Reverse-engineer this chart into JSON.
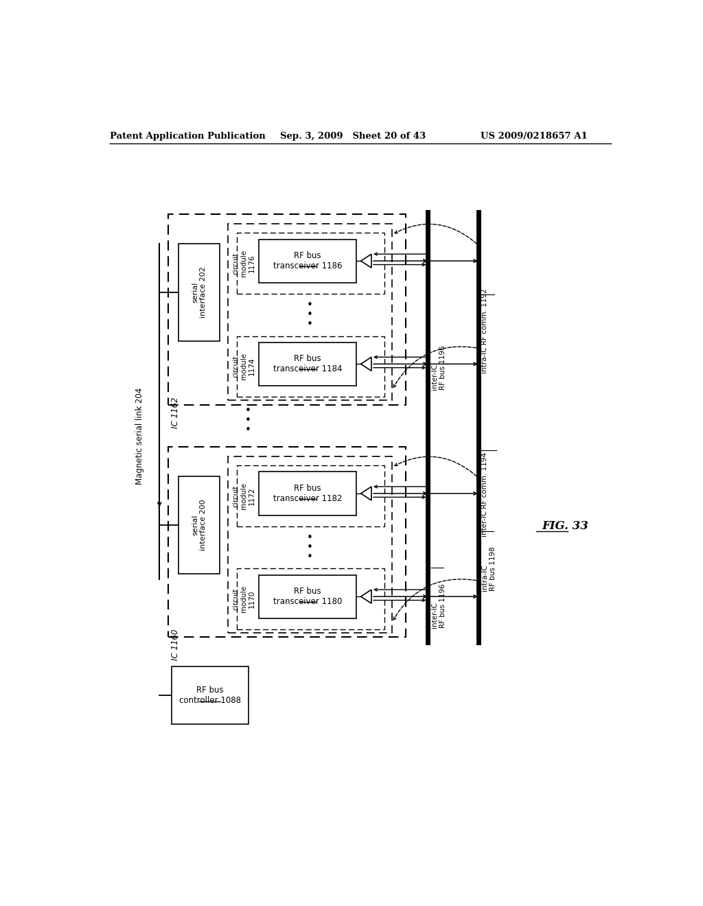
{
  "bg_color": "#ffffff",
  "header_left": "Patent Application Publication",
  "header_mid": "Sep. 3, 2009   Sheet 20 of 43",
  "header_right": "US 2009/0218657 A1",
  "fig_label": "FIG. 33"
}
